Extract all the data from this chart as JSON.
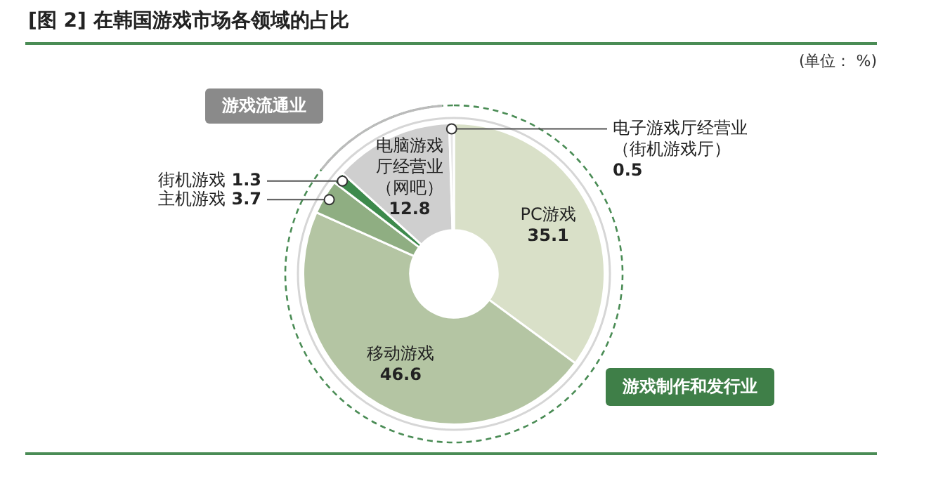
{
  "chart_data": {
    "type": "donut",
    "title": "[图 2] 在韩国游戏市场各领域的占比",
    "categories": [
      "PC游戏",
      "移动游戏",
      "主机游戏",
      "街机游戏",
      "电脑游戏厅经营业（网吧）",
      "电子游戏厅经营业（街机游戏厅）"
    ],
    "values": [
      35.1,
      46.6,
      3.7,
      1.3,
      12.8,
      0.5
    ],
    "colors": [
      "#d9e0c8",
      "#b4c5a3",
      "#8fae82",
      "#3d8a4c",
      "#cfcfcf",
      "#e6e6e6"
    ],
    "data_labels": true,
    "annotations": [
      "(单位： %)",
      "游戏流通业",
      "游戏制作和发行业"
    ],
    "legend": false
  }
}
